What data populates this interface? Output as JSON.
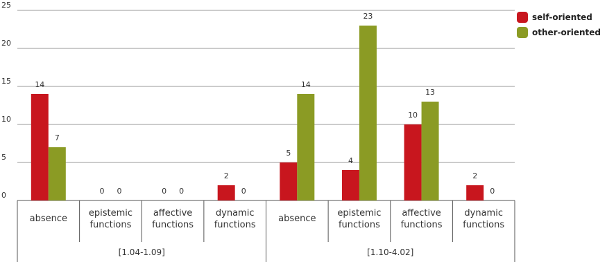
{
  "chart_data": {
    "type": "bar",
    "title": "",
    "xlabel": "",
    "ylabel": "",
    "ylim": [
      0,
      25
    ],
    "yticks": [
      0,
      5,
      10,
      15,
      20,
      25
    ],
    "grid": true,
    "legend_position": "top-right",
    "groups": [
      {
        "label": "[1.04-1.09]",
        "categories": [
          "absence",
          "epistemic functions",
          "affective functions",
          "dynamic functions"
        ]
      },
      {
        "label": "[1.10-4.02]",
        "categories": [
          "absence",
          "epistemic functions",
          "affective functions",
          "dynamic functions"
        ]
      }
    ],
    "categories": [
      "absence",
      "epistemic functions",
      "affective functions",
      "dynamic functions",
      "absence",
      "epistemic functions",
      "affective functions",
      "dynamic functions"
    ],
    "series": [
      {
        "name": "self-oriented",
        "color": "#c8161e",
        "values": [
          14,
          0,
          0,
          2,
          5,
          4,
          10,
          2
        ]
      },
      {
        "name": "other-oriented",
        "color": "#8b9b24",
        "values": [
          7,
          0,
          0,
          0,
          14,
          23,
          13,
          0
        ]
      }
    ]
  }
}
